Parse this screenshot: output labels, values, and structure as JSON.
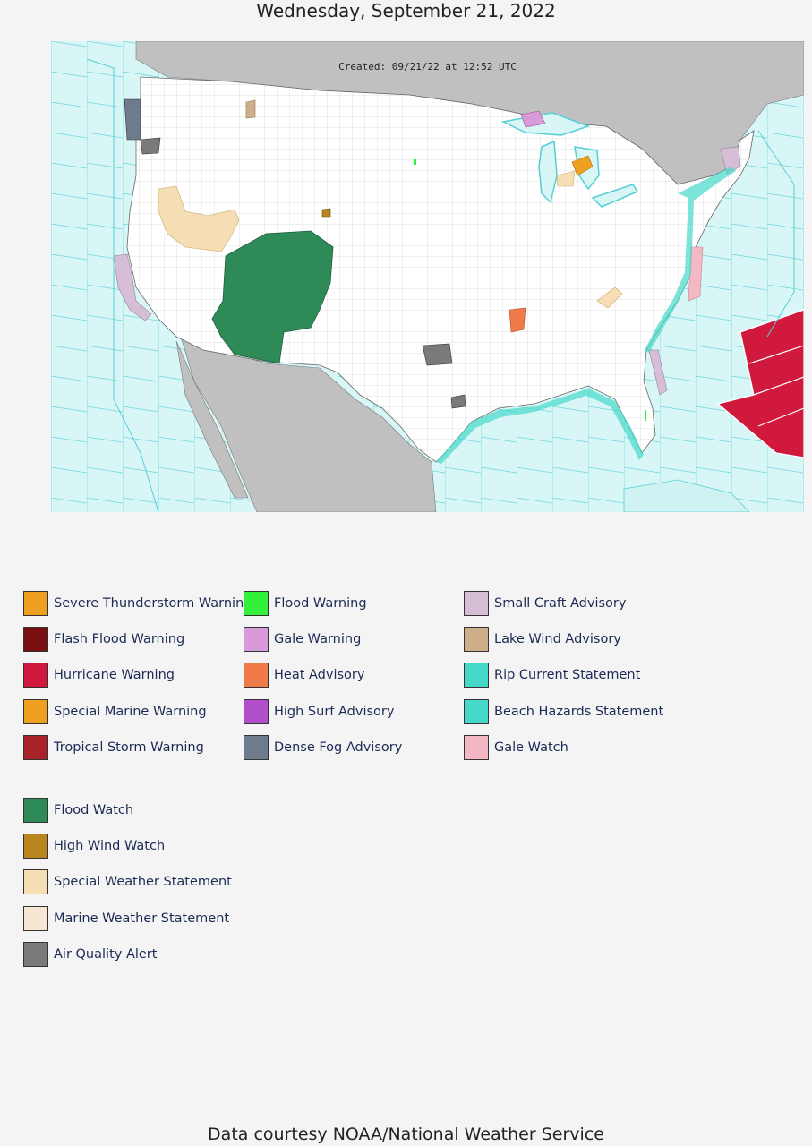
{
  "header": {
    "date": "Wednesday, September 21, 2022"
  },
  "map": {
    "created_stamp": "Created: 09/21/22 at 12:52 UTC",
    "colors": {
      "ocean": "#d9f6f7",
      "land_us": "#ffffff",
      "land_other": "#c0c0c0",
      "marine_zone_line": "#55cfd6",
      "county_line": "#9a9a9a"
    }
  },
  "legend": {
    "group1": [
      {
        "label": "Severe Thunderstorm Warning",
        "color": "#f0a020"
      },
      {
        "label": "Flash Flood Warning",
        "color": "#7a0f12"
      },
      {
        "label": "Hurricane Warning",
        "color": "#d0193c"
      },
      {
        "label": "Special Marine Warning",
        "color": "#f0a020"
      },
      {
        "label": "Tropical Storm Warning",
        "color": "#a8222a"
      },
      {
        "label": "Flood Warning",
        "color": "#33f03a"
      },
      {
        "label": "Gale Warning",
        "color": "#d99ad9"
      },
      {
        "label": "Heat Advisory",
        "color": "#f07a4a"
      },
      {
        "label": "High Surf Advisory",
        "color": "#b24ecc"
      },
      {
        "label": "Dense Fog Advisory",
        "color": "#6d7b8d"
      },
      {
        "label": "Small Craft Advisory",
        "color": "#d6bfd6"
      },
      {
        "label": "Lake Wind Advisory",
        "color": "#cdb08a"
      },
      {
        "label": "Rip Current Statement",
        "color": "#46d9c9"
      },
      {
        "label": "Beach Hazards Statement",
        "color": "#46d9c9"
      },
      {
        "label": "Gale Watch",
        "color": "#f4b8c4"
      }
    ],
    "group2": [
      {
        "label": "Flood Watch",
        "color": "#2e8b57"
      },
      {
        "label": "High Wind Watch",
        "color": "#b8861c"
      },
      {
        "label": "Special Weather Statement",
        "color": "#f5deb3"
      },
      {
        "label": "Marine Weather Statement",
        "color": "#f6e6d2"
      },
      {
        "label": "Air Quality Alert",
        "color": "#7a7a7a"
      }
    ]
  },
  "footer": {
    "credit": "Data courtesy NOAA/National Weather Service"
  }
}
